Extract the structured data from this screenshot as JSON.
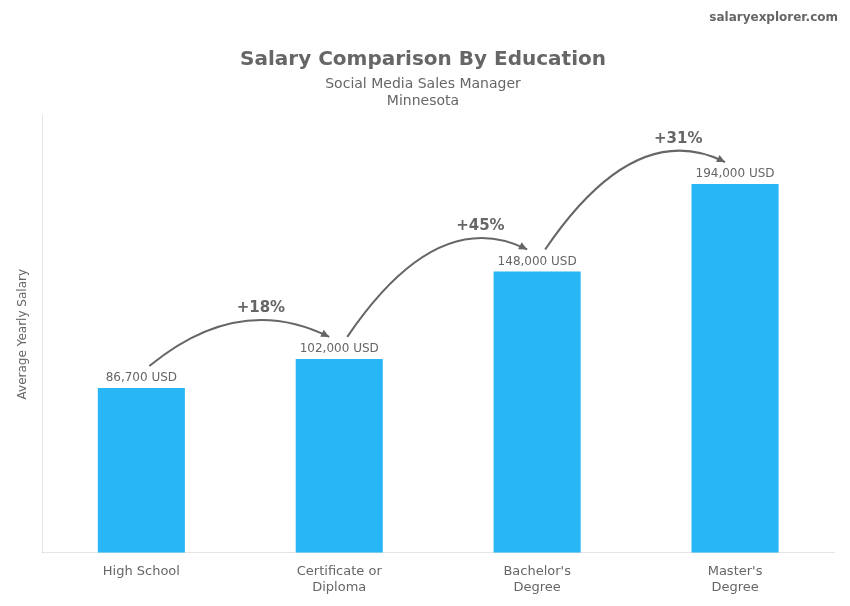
{
  "chart_data": {
    "type": "bar",
    "title": "Salary Comparison By Education",
    "subtitle": [
      "Social Media Sales Manager",
      "Minnesota"
    ],
    "source": "salaryexplorer.com",
    "y_label": "Average Yearly Salary",
    "categories": [
      "High School",
      "Certificate or\nDiploma",
      "Bachelor's\nDegree",
      "Master's\nDegree"
    ],
    "values": [
      86700,
      102000,
      148000,
      194000
    ],
    "value_labels": [
      "86,700 USD",
      "102,000 USD",
      "148,000 USD",
      "194,000 USD"
    ],
    "data_labels": true,
    "annotations": [
      "+18%",
      "+45%",
      "+31%"
    ],
    "color": "#29b6f6",
    "ylim": [
      0,
      230000
    ],
    "tick_labels": "x",
    "grid": false
  }
}
